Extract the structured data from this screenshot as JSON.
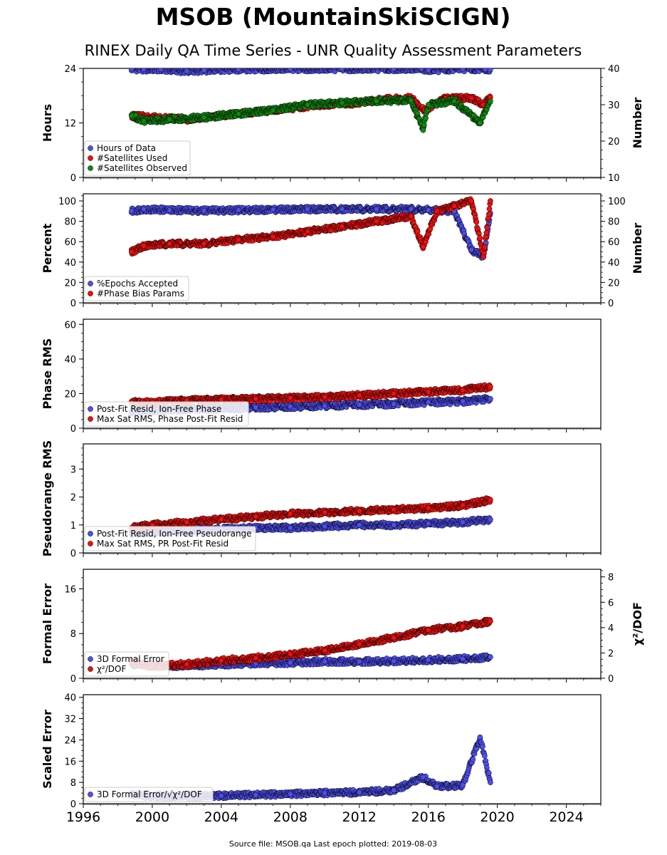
{
  "title": "MSOB (MountainSkiSCIGN)",
  "subtitle": "RINEX Daily QA Time Series - UNR Quality Assessment Parameters",
  "footer": "Source file: MSOB.qa Last epoch plotted: 2019-08-03",
  "colors": {
    "blue": "#4f4fef",
    "red": "#ee1111",
    "green": "#118811",
    "edge": "#000000"
  },
  "chart_data": [
    {
      "type": "scatter",
      "ylabel": "Hours",
      "ylabel_right": "Number",
      "ylim": [
        0,
        24
      ],
      "ylim_right": [
        10,
        40
      ],
      "yticks": [
        "0",
        "12",
        "24"
      ],
      "yticks_right": [
        "10",
        "20",
        "30",
        "40"
      ],
      "xlim": [
        1996,
        2026
      ],
      "legend": "lower-left",
      "series": [
        {
          "name": "Hours of Data",
          "color": "blue",
          "axis": "left",
          "x": [
            1998.8,
            1999.5,
            2000.5,
            2002.0,
            2003.0,
            2005.0,
            2008.0,
            2011.0,
            2014.0,
            2015.6,
            2016.0,
            2018.0,
            2019.3,
            2019.6
          ],
          "y": [
            23.9,
            23.8,
            23.8,
            23.4,
            23.6,
            23.8,
            23.9,
            23.9,
            23.9,
            23.9,
            23.6,
            23.9,
            23.8,
            23.8
          ]
        },
        {
          "name": "#Satellites Used",
          "color": "red",
          "axis": "right",
          "x": [
            1998.8,
            2000.0,
            2002.0,
            2004.0,
            2006.0,
            2008.0,
            2010.0,
            2012.0,
            2013.5,
            2015.0,
            2015.8,
            2017.0,
            2018.5,
            2019.2,
            2019.6
          ],
          "y": [
            27.0,
            26.5,
            26.0,
            27.0,
            28.0,
            29.0,
            30.0,
            30.5,
            31.5,
            31.8,
            28.5,
            31.8,
            31.8,
            30.0,
            32.0
          ]
        },
        {
          "name": "#Satellites Observed",
          "color": "green",
          "axis": "right",
          "x": [
            1998.8,
            1999.5,
            2001.0,
            2003.0,
            2005.0,
            2007.0,
            2009.0,
            2011.0,
            2013.0,
            2015.0,
            2015.7,
            2016.0,
            2017.5,
            2019.0,
            2019.6
          ],
          "y": [
            27.0,
            25.5,
            26.0,
            26.5,
            27.5,
            28.5,
            30.0,
            30.5,
            31.0,
            31.2,
            23.0,
            30.0,
            31.0,
            25.0,
            31.0
          ]
        }
      ]
    },
    {
      "type": "scatter",
      "ylabel": "Percent",
      "ylabel_right": "Number",
      "ylim": [
        0,
        107
      ],
      "ylim_right": [
        0,
        107
      ],
      "yticks": [
        "0",
        "20",
        "40",
        "60",
        "80",
        "100"
      ],
      "yticks_right": [
        "0",
        "20",
        "40",
        "60",
        "80",
        "100"
      ],
      "xlim": [
        1996,
        2026
      ],
      "legend": "lower-left",
      "series": [
        {
          "name": "%Epochs Accepted",
          "color": "blue",
          "axis": "left",
          "x": [
            1998.8,
            1999.5,
            2001.0,
            2003.0,
            2005.0,
            2007.0,
            2009.0,
            2011.0,
            2013.0,
            2015.0,
            2016.0,
            2017.5,
            2018.5,
            2019.2,
            2019.6
          ],
          "y": [
            90.0,
            92.0,
            91.0,
            90.5,
            91.0,
            91.5,
            92.0,
            92.0,
            92.0,
            92.0,
            91.0,
            90.0,
            52.0,
            45.0,
            88.0
          ]
        },
        {
          "name": "#Phase Bias Params",
          "color": "red",
          "axis": "right",
          "x": [
            1998.8,
            1999.5,
            2001.0,
            2003.0,
            2005.0,
            2007.0,
            2009.0,
            2011.0,
            2013.0,
            2015.0,
            2015.7,
            2016.5,
            2017.5,
            2018.5,
            2019.2,
            2019.6
          ],
          "y": [
            50.0,
            56.0,
            58.0,
            58.0,
            62.0,
            65.0,
            70.0,
            75.0,
            80.0,
            85.0,
            55.0,
            90.0,
            95.0,
            100.0,
            45.0,
            100.0
          ]
        }
      ]
    },
    {
      "type": "scatter",
      "ylabel": "Phase RMS",
      "ylim": [
        0,
        63
      ],
      "yticks": [
        "0",
        "20",
        "40",
        "60"
      ],
      "xlim": [
        1996,
        2026
      ],
      "legend": "lower-left",
      "series": [
        {
          "name": "Post-Fit Resid, Ion-Free Phase",
          "color": "blue",
          "axis": "left",
          "x": [
            1998.8,
            2000.0,
            2002.0,
            2004.0,
            2006.0,
            2008.0,
            2010.0,
            2012.0,
            2014.0,
            2016.0,
            2018.0,
            2019.6
          ],
          "y": [
            10.0,
            10.5,
            11.0,
            11.5,
            12.0,
            12.5,
            13.0,
            13.5,
            14.0,
            15.0,
            15.5,
            17.0
          ]
        },
        {
          "name": "Max Sat RMS, Phase Post-Fit Resid",
          "color": "red",
          "axis": "left",
          "x": [
            1998.8,
            2000.0,
            2002.0,
            2004.0,
            2006.0,
            2008.0,
            2010.0,
            2012.0,
            2014.0,
            2016.0,
            2018.0,
            2019.6
          ],
          "y": [
            15.0,
            15.0,
            16.0,
            16.5,
            17.0,
            17.5,
            18.0,
            19.0,
            20.0,
            21.0,
            22.0,
            24.0
          ]
        }
      ]
    },
    {
      "type": "scatter",
      "ylabel": "Pseudorange RMS",
      "ylim": [
        0,
        3.9
      ],
      "yticks": [
        "0",
        "1",
        "2",
        "3"
      ],
      "xlim": [
        1996,
        2026
      ],
      "legend": "lower-left",
      "series": [
        {
          "name": "Post-Fit Resid, Ion-Free Pseudorange",
          "color": "blue",
          "axis": "left",
          "x": [
            1998.8,
            2000.0,
            2002.0,
            2004.0,
            2006.0,
            2008.0,
            2010.0,
            2012.0,
            2014.0,
            2016.0,
            2018.0,
            2019.6
          ],
          "y": [
            0.7,
            0.75,
            0.8,
            0.85,
            0.9,
            0.9,
            0.95,
            1.0,
            1.0,
            1.05,
            1.1,
            1.2
          ]
        },
        {
          "name": "Max Sat RMS, PR Post-Fit Resid",
          "color": "red",
          "axis": "left",
          "x": [
            1998.8,
            2000.0,
            2002.0,
            2004.0,
            2006.0,
            2008.0,
            2010.0,
            2012.0,
            2014.0,
            2016.0,
            2018.0,
            2019.6
          ],
          "y": [
            0.9,
            1.0,
            1.1,
            1.2,
            1.3,
            1.4,
            1.45,
            1.5,
            1.55,
            1.6,
            1.7,
            1.9
          ]
        }
      ]
    },
    {
      "type": "scatter",
      "ylabel": "Formal Error",
      "ylabel_right": "χ²/DOF",
      "ylim": [
        0,
        19.5
      ],
      "ylim_right": [
        0,
        8.6
      ],
      "yticks": [
        "0",
        "8",
        "16"
      ],
      "yticks_right": [
        "0",
        "2",
        "4",
        "6",
        "8"
      ],
      "xlim": [
        1996,
        2026
      ],
      "legend": "lower-left",
      "series": [
        {
          "name": "3D Formal Error",
          "color": "blue",
          "axis": "left",
          "x": [
            1998.8,
            2000.0,
            2002.0,
            2004.0,
            2006.0,
            2008.0,
            2010.0,
            2012.0,
            2014.0,
            2016.0,
            2018.0,
            2019.6
          ],
          "y": [
            2.5,
            2.2,
            2.3,
            2.5,
            2.7,
            2.8,
            3.0,
            3.0,
            3.1,
            3.3,
            3.5,
            3.8
          ]
        },
        {
          "name": "χ²/DOF",
          "color": "red",
          "axis": "right",
          "x": [
            1998.8,
            2000.0,
            2002.0,
            2004.0,
            2006.0,
            2008.0,
            2010.0,
            2012.0,
            2014.0,
            2016.0,
            2018.0,
            2019.6
          ],
          "y": [
            1.3,
            1.0,
            1.1,
            1.4,
            1.6,
            1.9,
            2.2,
            2.7,
            3.2,
            3.8,
            4.1,
            4.5
          ]
        }
      ]
    },
    {
      "type": "scatter",
      "ylabel": "Scaled Error",
      "ylim": [
        0,
        41
      ],
      "yticks": [
        "0",
        "8",
        "16",
        "24",
        "32",
        "40"
      ],
      "xlim": [
        1996,
        2026
      ],
      "xticks": [
        "1996",
        "2000",
        "2004",
        "2008",
        "2012",
        "2016",
        "2020",
        "2024"
      ],
      "legend": "lower-left",
      "series": [
        {
          "name": "3D Formal Error/√χ²/DOF",
          "color": "blue",
          "axis": "left",
          "x": [
            1998.8,
            2000.0,
            2002.0,
            2004.0,
            2006.0,
            2008.0,
            2010.0,
            2012.0,
            2014.0,
            2015.7,
            2016.5,
            2018.0,
            2019.0,
            2019.6
          ],
          "y": [
            3.5,
            3.0,
            2.8,
            3.0,
            3.3,
            3.6,
            4.0,
            4.3,
            5.0,
            10.0,
            6.5,
            7.0,
            25.0,
            8.0
          ]
        }
      ]
    }
  ]
}
